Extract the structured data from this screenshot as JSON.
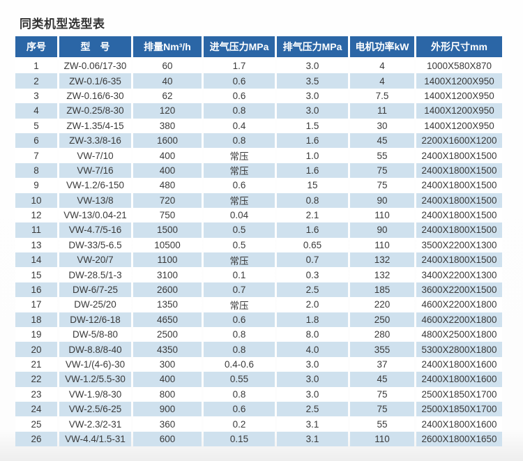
{
  "title": "同类机型选型表",
  "colors": {
    "header_bg": "#2b66a6",
    "header_text": "#ffffff",
    "row_alt_bg": "#cfe1ee",
    "cell_text": "#3a3a3a"
  },
  "table": {
    "columns": [
      {
        "key": "index",
        "label": "序号"
      },
      {
        "key": "model",
        "label": "型　号"
      },
      {
        "key": "displacement",
        "label": "排量Nm³/h"
      },
      {
        "key": "intake_pressure",
        "label": "进气压力MPa"
      },
      {
        "key": "exhaust_pressure",
        "label": "排气压力MPa"
      },
      {
        "key": "motor_power",
        "label": "电机功率kW"
      },
      {
        "key": "dimensions",
        "label": "外形尺寸mm"
      }
    ],
    "rows": [
      [
        "1",
        "ZW-0.06/17-30",
        "60",
        "1.7",
        "3.0",
        "4",
        "1000X580X870"
      ],
      [
        "2",
        "ZW-0.1/6-35",
        "40",
        "0.6",
        "3.5",
        "4",
        "1400X1200X950"
      ],
      [
        "3",
        "ZW-0.16/6-30",
        "62",
        "0.6",
        "3.0",
        "7.5",
        "1400X1200X950"
      ],
      [
        "4",
        "ZW-0.25/8-30",
        "120",
        "0.8",
        "3.0",
        "11",
        "1400X1200X950"
      ],
      [
        "5",
        "ZW-1.35/4-15",
        "380",
        "0.4",
        "1.5",
        "30",
        "1400X1200X950"
      ],
      [
        "6",
        "ZW-3.3/8-16",
        "1600",
        "0.8",
        "1.6",
        "45",
        "2200X1600X1200"
      ],
      [
        "7",
        "VW-7/10",
        "400",
        "常压",
        "1.0",
        "55",
        "2400X1800X1500"
      ],
      [
        "8",
        "VW-7/16",
        "400",
        "常压",
        "1.6",
        "75",
        "2400X1800X1500"
      ],
      [
        "9",
        "VW-1.2/6-150",
        "480",
        "0.6",
        "15",
        "75",
        "2400X1800X1500"
      ],
      [
        "10",
        "VW-13/8",
        "720",
        "常压",
        "0.8",
        "90",
        "2400X1800X1500"
      ],
      [
        "12",
        "VW-13/0.04-21",
        "750",
        "0.04",
        "2.1",
        "110",
        "2400X1800X1500"
      ],
      [
        "11",
        "VW-4.7/5-16",
        "1500",
        "0.5",
        "1.6",
        "90",
        "2400X1800X1500"
      ],
      [
        "13",
        "DW-33/5-6.5",
        "10500",
        "0.5",
        "0.65",
        "110",
        "3500X2200X1300"
      ],
      [
        "14",
        "VW-20/7",
        "1100",
        "常压",
        "0.7",
        "132",
        "2400X1800X1500"
      ],
      [
        "15",
        "DW-28.5/1-3",
        "3100",
        "0.1",
        "0.3",
        "132",
        "3400X2200X1300"
      ],
      [
        "16",
        "DW-6/7-25",
        "2600",
        "0.7",
        "2.5",
        "185",
        "3600X2200X1500"
      ],
      [
        "17",
        "DW-25/20",
        "1350",
        "常压",
        "2.0",
        "220",
        "4600X2200X1800"
      ],
      [
        "18",
        "DW-12/6-18",
        "4650",
        "0.6",
        "1.8",
        "250",
        "4600X2200X1800"
      ],
      [
        "19",
        "DW-5/8-80",
        "2500",
        "0.8",
        "8.0",
        "280",
        "4800X2500X1800"
      ],
      [
        "20",
        "DW-8.8/8-40",
        "4350",
        "0.8",
        "4.0",
        "355",
        "5300X2800X1800"
      ],
      [
        "21",
        "VW-1/(4-6)-30",
        "300",
        "0.4-0.6",
        "3.0",
        "37",
        "2400X1800X1600"
      ],
      [
        "22",
        "VW-1.2/5.5-30",
        "400",
        "0.55",
        "3.0",
        "45",
        "2400X1800X1600"
      ],
      [
        "23",
        "VW-1.9/8-30",
        "800",
        "0.8",
        "3.0",
        "75",
        "2500X1850X1700"
      ],
      [
        "24",
        "VW-2.5/6-25",
        "900",
        "0.6",
        "2.5",
        "75",
        "2500X1850X1700"
      ],
      [
        "25",
        "VW-2.3/2-31",
        "360",
        "0.2",
        "3.1",
        "55",
        "2400X1800X1600"
      ],
      [
        "26",
        "VW-4.4/1.5-31",
        "600",
        "0.15",
        "3.1",
        "110",
        "2600X1800X1650"
      ]
    ]
  }
}
